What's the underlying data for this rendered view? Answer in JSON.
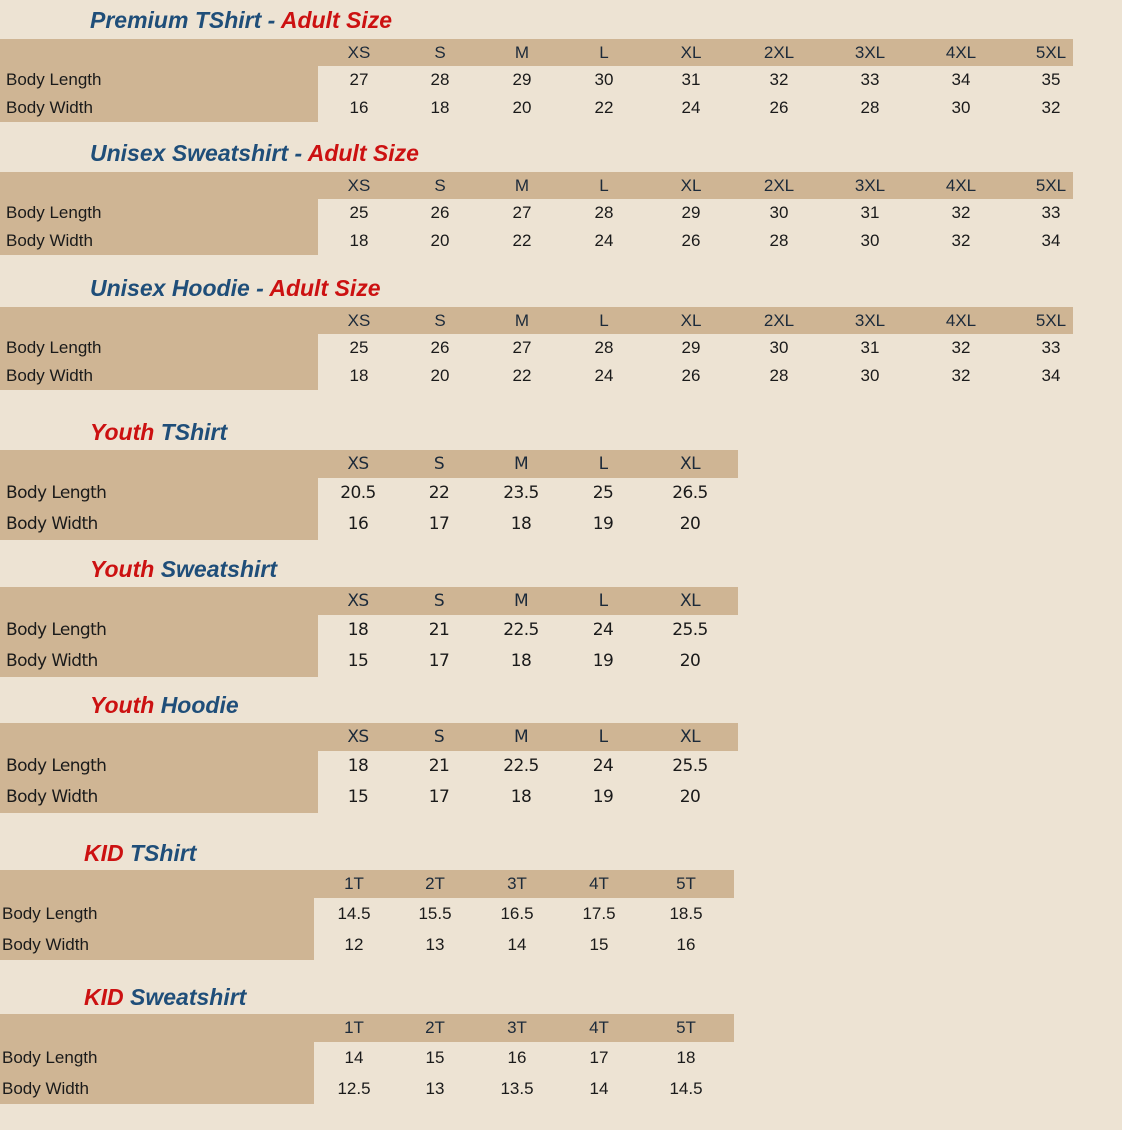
{
  "colors": {
    "background": "#ede3d3",
    "table_fill": "#cfb594",
    "title_blue": "#1f4e79",
    "title_red": "#cc1111"
  },
  "tables": [
    {
      "id": "premium-tshirt-adult",
      "style": "adult",
      "title": [
        {
          "text": "Premium TShirt - ",
          "color": "#1f4e79"
        },
        {
          "text": "Adult Size",
          "color": "#cc1111"
        }
      ],
      "sizes": [
        "XS",
        "S",
        "M",
        "L",
        "XL",
        "2XL",
        "3XL",
        "4XL",
        "5XL"
      ],
      "rows": [
        {
          "label": "Body Length",
          "values": [
            "27",
            "28",
            "29",
            "30",
            "31",
            "32",
            "33",
            "34",
            "35"
          ]
        },
        {
          "label": "Body Width",
          "values": [
            "16",
            "18",
            "20",
            "22",
            "24",
            "26",
            "28",
            "30",
            "32"
          ]
        }
      ]
    },
    {
      "id": "unisex-sweatshirt-adult",
      "style": "adult",
      "title": [
        {
          "text": "Unisex Sweatshirt - ",
          "color": "#1f4e79"
        },
        {
          "text": "Adult Size",
          "color": "#cc1111"
        }
      ],
      "sizes": [
        "XS",
        "S",
        "M",
        "L",
        "XL",
        "2XL",
        "3XL",
        "4XL",
        "5XL"
      ],
      "rows": [
        {
          "label": "Body Length",
          "values": [
            "25",
            "26",
            "27",
            "28",
            "29",
            "30",
            "31",
            "32",
            "33"
          ]
        },
        {
          "label": "Body Width",
          "values": [
            "18",
            "20",
            "22",
            "24",
            "26",
            "28",
            "30",
            "32",
            "34"
          ]
        }
      ]
    },
    {
      "id": "unisex-hoodie-adult",
      "style": "adult",
      "title": [
        {
          "text": "Unisex Hoodie - ",
          "color": "#1f4e79"
        },
        {
          "text": "Adult Size",
          "color": "#cc1111"
        }
      ],
      "sizes": [
        "XS",
        "S",
        "M",
        "L",
        "XL",
        "2XL",
        "3XL",
        "4XL",
        "5XL"
      ],
      "rows": [
        {
          "label": "Body Length",
          "values": [
            "25",
            "26",
            "27",
            "28",
            "29",
            "30",
            "31",
            "32",
            "33"
          ]
        },
        {
          "label": "Body Width",
          "values": [
            "18",
            "20",
            "22",
            "24",
            "26",
            "28",
            "30",
            "32",
            "34"
          ]
        }
      ]
    },
    {
      "id": "youth-tshirt",
      "style": "youth",
      "title": [
        {
          "text": "Youth ",
          "color": "#cc1111"
        },
        {
          "text": "TShirt",
          "color": "#1f4e79"
        }
      ],
      "sizes": [
        "XS",
        "S",
        "M",
        "L",
        "XL"
      ],
      "rows": [
        {
          "label": "Body Length",
          "values": [
            "20.5",
            "22",
            "23.5",
            "25",
            "26.5"
          ]
        },
        {
          "label": "Body Width",
          "values": [
            "16",
            "17",
            "18",
            "19",
            "20"
          ]
        }
      ]
    },
    {
      "id": "youth-sweatshirt",
      "style": "youth",
      "title": [
        {
          "text": "Youth ",
          "color": "#cc1111"
        },
        {
          "text": "Sweatshirt",
          "color": "#1f4e79"
        }
      ],
      "sizes": [
        "XS",
        "S",
        "M",
        "L",
        "XL"
      ],
      "rows": [
        {
          "label": "Body Length",
          "values": [
            "18",
            "21",
            "22.5",
            "24",
            "25.5"
          ]
        },
        {
          "label": "Body Width",
          "values": [
            "15",
            "17",
            "18",
            "19",
            "20"
          ]
        }
      ]
    },
    {
      "id": "youth-hoodie",
      "style": "youth",
      "title": [
        {
          "text": "Youth ",
          "color": "#cc1111"
        },
        {
          "text": "Hoodie",
          "color": "#1f4e79"
        }
      ],
      "sizes": [
        "XS",
        "S",
        "M",
        "L",
        "XL"
      ],
      "rows": [
        {
          "label": "Body Length",
          "values": [
            "18",
            "21",
            "22.5",
            "24",
            "25.5"
          ]
        },
        {
          "label": "Body Width",
          "values": [
            "15",
            "17",
            "18",
            "19",
            "20"
          ]
        }
      ]
    },
    {
      "id": "kid-tshirt",
      "style": "kid",
      "title": [
        {
          "text": "KID ",
          "color": "#cc1111"
        },
        {
          "text": "TShirt",
          "color": "#1f4e79"
        }
      ],
      "sizes": [
        "1T",
        "2T",
        "3T",
        "4T",
        "5T"
      ],
      "rows": [
        {
          "label": "Body Length",
          "values": [
            "14.5",
            "15.5",
            "16.5",
            "17.5",
            "18.5"
          ]
        },
        {
          "label": "Body Width",
          "values": [
            "12",
            "13",
            "14",
            "15",
            "16"
          ]
        }
      ]
    },
    {
      "id": "kid-sweatshirt",
      "style": "kid",
      "title": [
        {
          "text": "KID ",
          "color": "#cc1111"
        },
        {
          "text": "Sweatshirt",
          "color": "#1f4e79"
        }
      ],
      "sizes": [
        "1T",
        "2T",
        "3T",
        "4T",
        "5T"
      ],
      "rows": [
        {
          "label": "Body Length",
          "values": [
            "14",
            "15",
            "16",
            "17",
            "18"
          ]
        },
        {
          "label": "Body Width",
          "values": [
            "12.5",
            "13",
            "13.5",
            "14",
            "14.5"
          ]
        }
      ]
    }
  ]
}
